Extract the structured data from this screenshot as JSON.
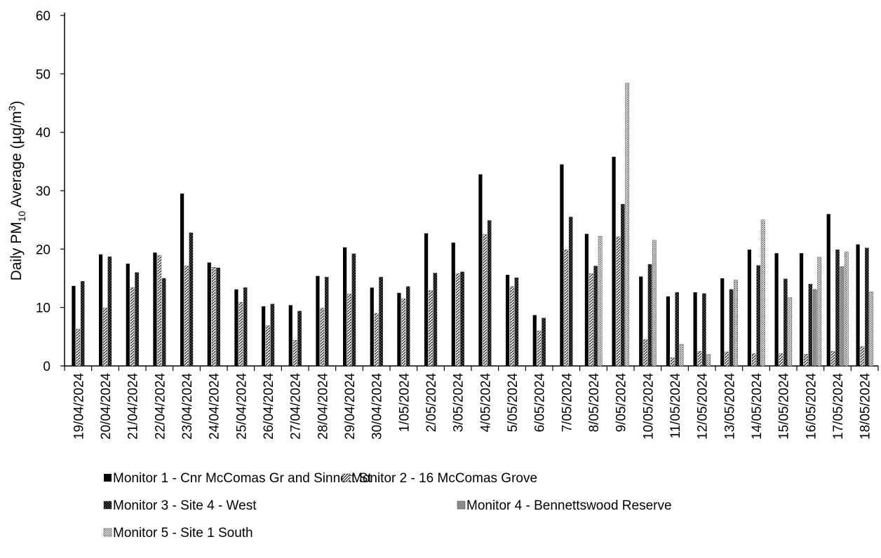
{
  "chart_data": {
    "type": "bar",
    "ylabel": {
      "prefix": "Daily PM",
      "sub": "10",
      "middle": " Average (µg/m",
      "sup": "3",
      "suffix": ")"
    },
    "ylim": [
      0,
      60
    ],
    "yticks": [
      0,
      10,
      20,
      30,
      40,
      50,
      60
    ],
    "grid": false,
    "legend_position": "bottom",
    "categories": [
      "19/04/2024",
      "20/04/2024",
      "21/04/2024",
      "22/04/2024",
      "23/04/2024",
      "24/04/2024",
      "25/04/2024",
      "26/04/2024",
      "27/04/2024",
      "28/04/2024",
      "29/04/2024",
      "30/04/2024",
      "1/05/2024",
      "2/05/2024",
      "3/05/2024",
      "4/05/2024",
      "5/05/2024",
      "6/05/2024",
      "7/05/2024",
      "8/05/2024",
      "9/05/2024",
      "10/05/2024",
      "11/05/2024",
      "12/05/2024",
      "13/05/2024",
      "14/05/2024",
      "15/05/2024",
      "16/05/2024",
      "17/05/2024",
      "18/05/2024"
    ],
    "series": [
      {
        "name": "Monitor 1 - Cnr McComas Gr and Sinnott St",
        "pattern": "solid-black",
        "values": [
          13.7,
          19.1,
          17.5,
          19.4,
          29.5,
          17.7,
          13.1,
          10.2,
          10.4,
          15.4,
          20.3,
          13.4,
          12.5,
          22.7,
          21.1,
          32.8,
          15.6,
          8.7,
          34.5,
          22.6,
          35.8,
          15.3,
          11.9,
          12.6,
          15.0,
          19.9,
          19.3,
          19.3,
          26.0,
          20.8
        ]
      },
      {
        "name": "Monitor 2 - 16 McComas Grove",
        "pattern": "light-diagonal",
        "values": [
          6.3,
          9.9,
          13.4,
          18.9,
          17.1,
          16.9,
          10.9,
          6.9,
          4.4,
          9.9,
          12.3,
          9.0,
          11.5,
          12.9,
          15.8,
          22.5,
          13.6,
          6.0,
          19.9,
          15.8,
          22.1,
          4.5,
          1.4,
          2.5,
          2.4,
          2.1,
          2.1,
          2.0,
          2.5,
          3.3
        ]
      },
      {
        "name": "Monitor 3 - Site 4 - West",
        "pattern": "dark-crosshatch",
        "values": [
          14.5,
          18.7,
          16.0,
          15.0,
          22.8,
          16.8,
          13.4,
          10.6,
          9.4,
          15.2,
          19.2,
          15.2,
          13.6,
          15.9,
          16.1,
          24.9,
          15.1,
          8.2,
          25.5,
          17.1,
          27.7,
          17.4,
          12.6,
          12.4,
          13.1,
          17.2,
          14.9,
          14.0,
          19.9,
          20.2
        ]
      },
      {
        "name": "Monitor 4 - Bennettswood Reserve",
        "pattern": "solid-gray",
        "values": [
          null,
          null,
          null,
          null,
          null,
          null,
          null,
          null,
          null,
          null,
          null,
          null,
          null,
          null,
          null,
          null,
          null,
          null,
          null,
          null,
          null,
          null,
          null,
          null,
          null,
          null,
          null,
          13.1,
          17.0,
          null
        ]
      },
      {
        "name": "Monitor 5 - Site 1 South",
        "pattern": "fine-dots",
        "values": [
          null,
          null,
          null,
          null,
          null,
          null,
          null,
          null,
          null,
          null,
          null,
          null,
          null,
          null,
          null,
          null,
          null,
          null,
          null,
          22.2,
          48.4,
          21.5,
          3.7,
          2.0,
          14.7,
          25.0,
          11.7,
          18.6,
          19.5,
          12.7
        ]
      }
    ]
  }
}
